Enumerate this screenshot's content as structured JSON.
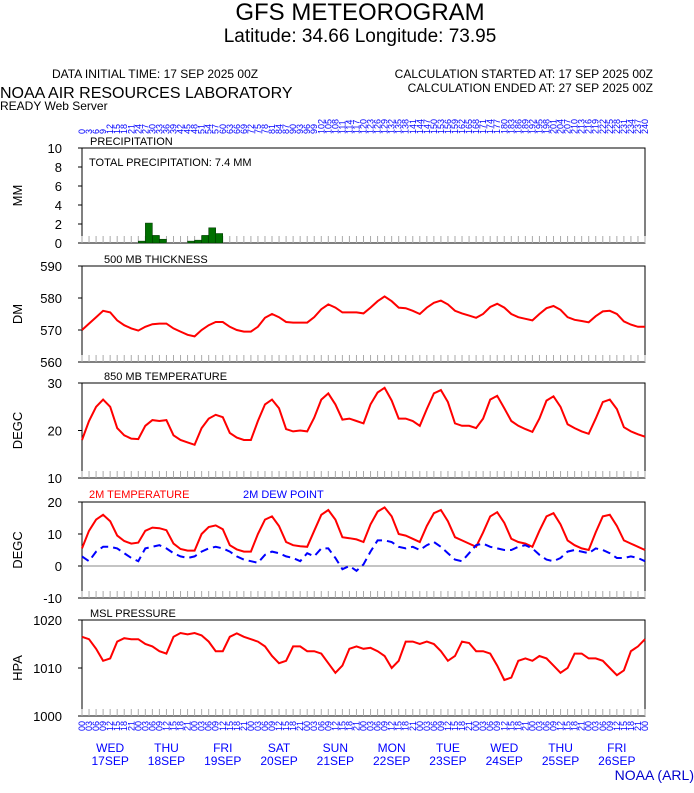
{
  "header": {
    "title": "GFS METEOROGRAM",
    "location": "Latitude: 34.66 Longitude:  73.95",
    "initial_time": "DATA INITIAL TIME: 17 SEP 2025 00Z",
    "calc_started": "CALCULATION STARTED AT: 17 SEP 2025 00Z",
    "calc_ended": "CALCULATION ENDED AT: 27 SEP 2025 00Z",
    "lab": "NOAA AIR RESOURCES LABORATORY",
    "server": "READY Web Server",
    "footer": "NOAA (ARL)"
  },
  "time_axis": {
    "xlim": [
      0,
      240
    ],
    "forecast_hours": [
      0,
      3,
      6,
      9,
      12,
      15,
      18,
      21,
      24,
      27,
      30,
      33,
      36,
      39,
      42,
      45,
      48,
      51,
      54,
      57,
      60,
      63,
      66,
      69,
      72,
      75,
      78,
      81,
      84,
      87,
      90,
      93,
      96,
      99,
      102,
      105,
      108,
      111,
      114,
      117,
      120,
      123,
      126,
      129,
      132,
      135,
      138,
      141,
      144,
      147,
      150,
      153,
      156,
      159,
      162,
      165,
      168,
      171,
      174,
      177,
      180,
      183,
      186,
      189,
      192,
      195,
      198,
      201,
      204,
      207,
      210,
      213,
      216,
      219,
      222,
      225,
      228,
      231,
      234,
      237,
      240
    ],
    "hour_labels": [
      "00",
      "03",
      "06",
      "09",
      "12",
      "15",
      "18",
      "21",
      "00",
      "03",
      "06",
      "09",
      "12",
      "15",
      "18",
      "21",
      "00",
      "03",
      "06",
      "09",
      "12",
      "15",
      "18",
      "21",
      "00",
      "03",
      "06",
      "09",
      "12",
      "15",
      "18",
      "21",
      "00",
      "03",
      "06",
      "09",
      "12",
      "15",
      "18",
      "21",
      "00",
      "03",
      "06",
      "09",
      "12",
      "15",
      "18",
      "21",
      "00",
      "03",
      "06",
      "09",
      "12",
      "15",
      "18",
      "21",
      "00",
      "03",
      "06",
      "09",
      "12",
      "15",
      "18",
      "21",
      "00",
      "03",
      "06",
      "09",
      "12",
      "15",
      "18",
      "21",
      "00",
      "03",
      "06",
      "09",
      "12",
      "15",
      "18",
      "21",
      "00"
    ],
    "day_hours": [
      12,
      36,
      60,
      84,
      108,
      132,
      156,
      180,
      204,
      228
    ],
    "day_labels": [
      {
        "day": "WED",
        "date": "17SEP"
      },
      {
        "day": "THU",
        "date": "18SEP"
      },
      {
        "day": "FRI",
        "date": "19SEP"
      },
      {
        "day": "SAT",
        "date": "20SEP"
      },
      {
        "day": "SUN",
        "date": "21SEP"
      },
      {
        "day": "MON",
        "date": "22SEP"
      },
      {
        "day": "TUE",
        "date": "23SEP"
      },
      {
        "day": "WED",
        "date": "24SEP"
      },
      {
        "day": "THU",
        "date": "25SEP"
      },
      {
        "day": "FRI",
        "date": "26SEP"
      }
    ]
  },
  "chart_data": [
    {
      "type": "bar",
      "title": "PRECIPITATION",
      "annotation": "TOTAL PRECIPITATION:  7.4 MM",
      "ylabel": "MM",
      "ylim": [
        0,
        10
      ],
      "yticks": [
        0,
        2,
        4,
        6,
        8,
        10
      ],
      "color": "#007000",
      "x": [
        24,
        27,
        30,
        33,
        45,
        48,
        51,
        54,
        57
      ],
      "values": [
        0.2,
        2.1,
        0.8,
        0.4,
        0.2,
        0.3,
        0.8,
        1.6,
        1.0
      ]
    },
    {
      "type": "line",
      "title": "500 MB  THICKNESS",
      "ylabel": "DM",
      "ylim": [
        560,
        590
      ],
      "yticks": [
        560,
        570,
        580,
        590
      ],
      "series": [
        {
          "color": "#ff0000",
          "style": "solid",
          "values": [
            570,
            572,
            574,
            576,
            575.5,
            573,
            571.5,
            570.5,
            569.8,
            571,
            571.8,
            572,
            572,
            570.5,
            569.5,
            568.5,
            568,
            570,
            571.5,
            572.5,
            572.5,
            571,
            570,
            569.5,
            569.5,
            571,
            573.8,
            575,
            574,
            572.5,
            572.3,
            572.3,
            572.3,
            574,
            576.5,
            578,
            577,
            575.5,
            575.5,
            575.5,
            575.2,
            577,
            579,
            580.5,
            579,
            577,
            576.8,
            576,
            575,
            577,
            578.5,
            579.2,
            578,
            576,
            575.2,
            574.5,
            573.8,
            575,
            577.2,
            578.2,
            577,
            575,
            574,
            573.5,
            573,
            575,
            576.8,
            577.5,
            576.3,
            574,
            573.2,
            572.8,
            572.4,
            574.3,
            575.8,
            576,
            575,
            572.7,
            571.7,
            571,
            571
          ]
        }
      ]
    },
    {
      "type": "line",
      "title": "850 MB  TEMPERATURE",
      "ylabel": "DEGC",
      "ylim": [
        10,
        30
      ],
      "yticks": [
        10,
        20,
        30
      ],
      "series": [
        {
          "color": "#ff0000",
          "style": "solid",
          "values": [
            18,
            22,
            25,
            26.5,
            25,
            20.5,
            19,
            18.3,
            18.2,
            21,
            22.2,
            22,
            22.2,
            19,
            18,
            17.5,
            17,
            20.5,
            22.5,
            23.3,
            22.8,
            19.5,
            18.5,
            18,
            18,
            22,
            25.5,
            26.5,
            24.7,
            20.3,
            19.8,
            20,
            19.8,
            22.7,
            26.5,
            27.8,
            25.5,
            22.3,
            22.5,
            22,
            21.5,
            25.5,
            28,
            29,
            26.3,
            22.5,
            22.5,
            22,
            21,
            24.5,
            27.8,
            28.5,
            26,
            21.5,
            21,
            21,
            20.5,
            22.5,
            26.5,
            27.3,
            24.7,
            22,
            21,
            20.3,
            19.7,
            22.5,
            26.3,
            27.2,
            25,
            21.3,
            20.5,
            19.8,
            19.3,
            22.5,
            26,
            26.5,
            24.5,
            20.7,
            19.8,
            19.2,
            18.7
          ]
        }
      ]
    },
    {
      "type": "line",
      "ylabel": "DEGC",
      "ylim": [
        -10,
        20
      ],
      "yticks": [
        -10,
        0,
        10,
        20
      ],
      "zero_line": true,
      "series": [
        {
          "name": "2M TEMPERATURE",
          "color": "#ff0000",
          "style": "solid",
          "values": [
            5.5,
            11,
            14.5,
            16,
            14,
            9.5,
            7.8,
            7,
            7.3,
            11,
            12,
            11.8,
            11.2,
            7,
            5.3,
            4.8,
            4.8,
            10,
            12.2,
            12.7,
            11.5,
            6.5,
            5.2,
            4.5,
            4.5,
            10,
            14.5,
            15.5,
            12.5,
            7.5,
            6.5,
            6.2,
            6,
            11,
            16,
            17.5,
            14.5,
            9,
            8.7,
            8.3,
            7.5,
            13,
            17,
            18.3,
            15.5,
            10,
            9.5,
            8.5,
            7.5,
            12.5,
            16.5,
            17.5,
            14,
            9,
            8,
            7,
            6,
            10.5,
            15.5,
            16.8,
            13.5,
            8.5,
            7.5,
            7,
            6,
            11,
            15.5,
            16.5,
            13,
            8,
            6.5,
            5.5,
            5,
            10.5,
            15.5,
            16,
            12.5,
            8,
            7,
            6,
            5
          ]
        },
        {
          "name": "2M  DEW POINT",
          "color": "#0000ff",
          "style": "dashed",
          "values": [
            3,
            1.5,
            4.5,
            6,
            6,
            5.5,
            4,
            2.5,
            1.5,
            5.5,
            6,
            6.5,
            5.5,
            4,
            3,
            2.5,
            3,
            4.5,
            5.5,
            6,
            5.5,
            4.5,
            3,
            2,
            1.5,
            1,
            3.5,
            4.5,
            4,
            3,
            2.5,
            1.5,
            4,
            3,
            5.5,
            5.5,
            2.5,
            -1,
            0,
            -1.5,
            0.5,
            4.5,
            8,
            8,
            7.5,
            6,
            5.5,
            6,
            5,
            6.5,
            7.5,
            6,
            4,
            2,
            1.5,
            4,
            6.5,
            7,
            6,
            5.5,
            5,
            5,
            6,
            6.5,
            5.5,
            3.5,
            2,
            1.5,
            2.5,
            4.5,
            5,
            4.5,
            4,
            5.5,
            5,
            4,
            2.5,
            2.5,
            3,
            2.5,
            1.5
          ]
        }
      ]
    },
    {
      "type": "line",
      "title": "MSL PRESSURE",
      "ylabel": "HPA",
      "ylim": [
        1000,
        1020
      ],
      "yticks": [
        1000,
        1010,
        1020
      ],
      "series": [
        {
          "color": "#ff0000",
          "style": "solid",
          "values": [
            1016.5,
            1016,
            1014,
            1011.5,
            1012,
            1015.5,
            1016.2,
            1016,
            1016,
            1015,
            1014.5,
            1013.5,
            1013,
            1016.5,
            1017.3,
            1017,
            1017.3,
            1016.8,
            1015.5,
            1013.5,
            1013.5,
            1016.5,
            1017.2,
            1016.5,
            1016,
            1015.5,
            1014.5,
            1012.5,
            1011,
            1011.5,
            1014.5,
            1014.5,
            1013.5,
            1013.5,
            1013,
            1011,
            1009,
            1010.5,
            1014,
            1014.5,
            1014,
            1014.2,
            1013.5,
            1012.5,
            1010,
            1011.5,
            1015.5,
            1015.5,
            1015,
            1015.5,
            1015,
            1013.5,
            1011.5,
            1012.5,
            1015.5,
            1015.2,
            1013.5,
            1013.5,
            1013,
            1010.5,
            1007.5,
            1008,
            1011.5,
            1012,
            1011.5,
            1012.5,
            1012,
            1010.5,
            1009,
            1010,
            1013,
            1013,
            1012,
            1012,
            1011.5,
            1010,
            1008.5,
            1009.5,
            1013.5,
            1014.5,
            1016
          ]
        }
      ]
    }
  ]
}
